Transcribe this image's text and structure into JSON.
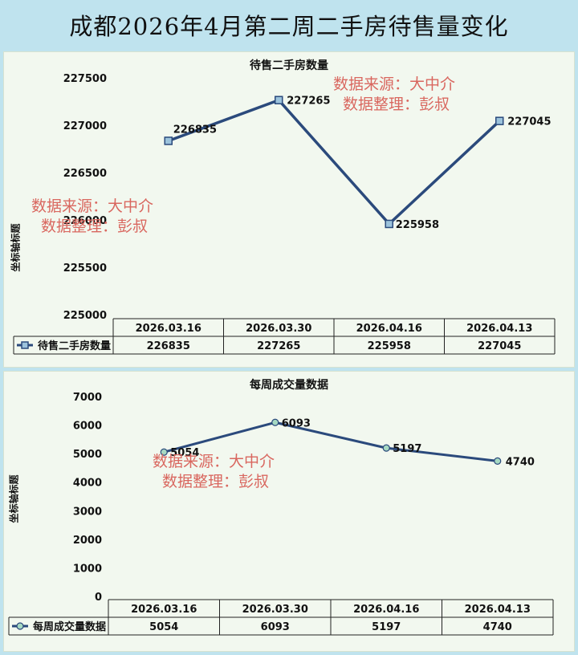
{
  "page_title": "成都2026年4月第二周二手房待售量变化",
  "watermark": {
    "line1": "数据来源：大中介",
    "line2": "数据整理：彭叔"
  },
  "chart_data": [
    {
      "type": "line",
      "title": "待售二手房数量",
      "ylabel": "坐标轴标题",
      "categories": [
        "2026.03.16",
        "2026.03.30",
        "2026.04.16",
        "2026.04.13"
      ],
      "series": [
        {
          "name": "待售二手房数量",
          "values": [
            226835,
            227265,
            225958,
            227045
          ]
        }
      ],
      "ylim": [
        225000,
        227500
      ],
      "yticks": [
        225000,
        225500,
        226000,
        226500,
        227000,
        227500
      ],
      "marker": "square",
      "color": "#2b4a7c",
      "grid": false,
      "legend": "data-table-left"
    },
    {
      "type": "line",
      "title": "每周成交量数据",
      "ylabel": "坐标轴标题",
      "categories": [
        "2026.03.16",
        "2026.03.30",
        "2026.04.16",
        "2026.04.13"
      ],
      "series": [
        {
          "name": "每周成交量数据",
          "values": [
            5054,
            6093,
            5197,
            4740
          ]
        }
      ],
      "ylim": [
        0,
        7000
      ],
      "yticks": [
        0,
        1000,
        2000,
        3000,
        4000,
        5000,
        6000,
        7000
      ],
      "marker": "circle",
      "color": "#2b4a7c",
      "grid": false,
      "legend": "data-table-left"
    }
  ]
}
